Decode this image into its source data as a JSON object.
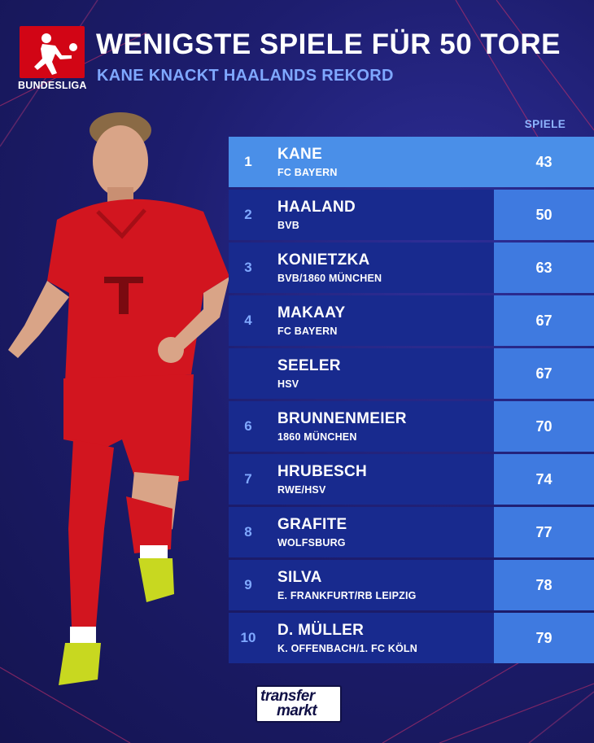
{
  "header": {
    "title": "WENIGSTE SPIELE FÜR 50 TORE",
    "subtitle": "KANE KNACKT HAALANDS REKORD",
    "brand": "BUNDESLIGA"
  },
  "table": {
    "column_header": "SPIELE",
    "rows": [
      {
        "rank": "1",
        "name": "KANE",
        "club": "FC BAYERN",
        "games": "43",
        "highlight": true
      },
      {
        "rank": "2",
        "name": "HAALAND",
        "club": "BVB",
        "games": "50"
      },
      {
        "rank": "3",
        "name": "KONIETZKA",
        "club": "BVB/1860 MÜNCHEN",
        "games": "63"
      },
      {
        "rank": "4",
        "name": "MAKAAY",
        "club": "FC BAYERN",
        "games": "67"
      },
      {
        "rank": "",
        "name": "SEELER",
        "club": "HSV",
        "games": "67"
      },
      {
        "rank": "6",
        "name": "BRUNNENMEIER",
        "club": "1860 MÜNCHEN",
        "games": "70"
      },
      {
        "rank": "7",
        "name": "HRUBESCH",
        "club": "RWE/HSV",
        "games": "74"
      },
      {
        "rank": "8",
        "name": "GRAFITE",
        "club": "WOLFSBURG",
        "games": "77"
      },
      {
        "rank": "9",
        "name": "SILVA",
        "club": "E. FRANKFURT/RB LEIPZIG",
        "games": "78"
      },
      {
        "rank": "10",
        "name": "D. MÜLLER",
        "club": "K. OFFENBACH/1. FC KÖLN",
        "games": "79"
      }
    ]
  },
  "footer": {
    "logo_line1": "transfer",
    "logo_line2": "markt"
  },
  "colors": {
    "background": "#1d1d6e",
    "row": "#182a8e",
    "row_highlight": "#4a8fe8",
    "games_cell": "#3f7ae0",
    "accent_text": "#7fa8ff",
    "bundesliga_red": "#d20515"
  }
}
